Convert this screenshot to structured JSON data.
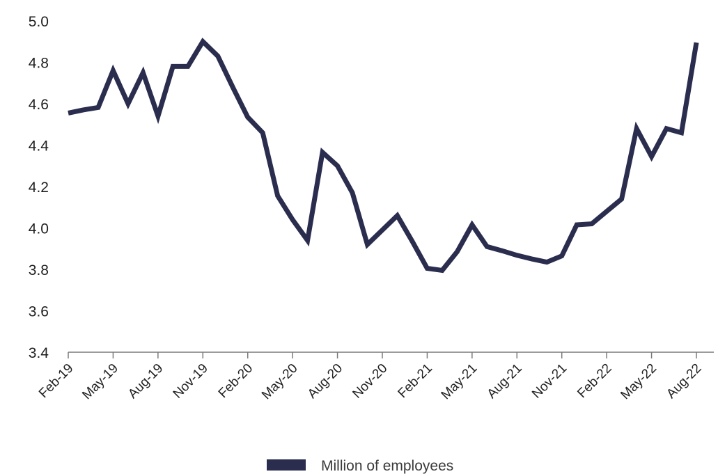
{
  "chart_data": {
    "type": "line",
    "title": "",
    "xlabel": "",
    "ylabel": "",
    "ylim": [
      3.4,
      5.0
    ],
    "yticks": [
      "3.4",
      "3.6",
      "3.8",
      "4.0",
      "4.2",
      "4.4",
      "4.6",
      "4.8",
      "5.0"
    ],
    "xtick_labels": [
      "Feb-19",
      "May-19",
      "Aug-19",
      "Nov-19",
      "Feb-20",
      "May-20",
      "Aug-20",
      "Nov-20",
      "Feb-21",
      "May-21",
      "Aug-21",
      "Nov-21",
      "Feb-22",
      "May-22",
      "Aug-22"
    ],
    "grid": false,
    "legend_position": "bottom-center",
    "line_color": "#2b2d4e",
    "series": [
      {
        "name": "Million of employees",
        "x": [
          "Feb-19",
          "Mar-19",
          "Apr-19",
          "May-19",
          "Jun-19",
          "Jul-19",
          "Aug-19",
          "Sep-19",
          "Oct-19",
          "Nov-19",
          "Dec-19",
          "Jan-20",
          "Feb-20",
          "Mar-20",
          "Apr-20",
          "May-20",
          "Jun-20",
          "Jul-20",
          "Aug-20",
          "Sep-20",
          "Oct-20",
          "Nov-20",
          "Dec-20",
          "Jan-21",
          "Feb-21",
          "Mar-21",
          "Apr-21",
          "May-21",
          "Jun-21",
          "Jul-21",
          "Aug-21",
          "Sep-21",
          "Oct-21",
          "Nov-21",
          "Dec-21",
          "Jan-22",
          "Feb-22",
          "Mar-22",
          "Apr-22",
          "May-22",
          "Jun-22",
          "Jul-22",
          "Aug-22"
        ],
        "values": [
          4.555,
          4.57,
          4.582,
          4.76,
          4.6,
          4.75,
          4.54,
          4.78,
          4.78,
          4.9,
          4.83,
          4.68,
          4.535,
          4.46,
          4.155,
          4.04,
          3.94,
          4.365,
          4.3,
          4.17,
          3.92,
          3.99,
          4.06,
          3.935,
          3.805,
          3.795,
          3.885,
          4.015,
          3.91,
          3.89,
          3.868,
          3.85,
          3.835,
          3.865,
          4.015,
          4.02,
          4.08,
          4.14,
          4.48,
          4.345,
          4.48,
          4.46,
          4.895
        ]
      }
    ]
  }
}
